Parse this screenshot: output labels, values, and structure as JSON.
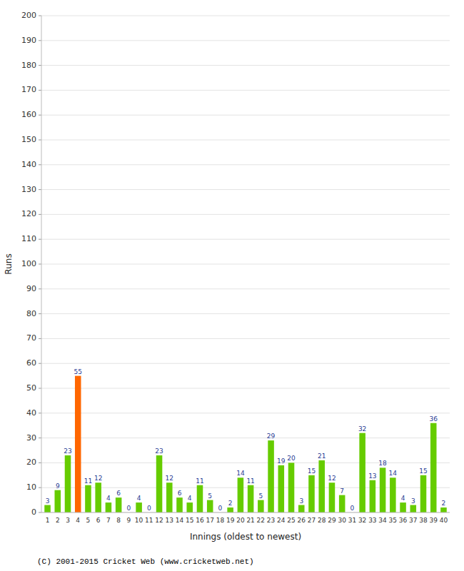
{
  "chart_data": {
    "type": "bar",
    "xlabel": "Innings (oldest to newest)",
    "ylabel": "Runs",
    "categories": [
      1,
      2,
      3,
      4,
      5,
      6,
      7,
      8,
      9,
      10,
      11,
      12,
      13,
      14,
      15,
      16,
      17,
      18,
      19,
      20,
      21,
      22,
      23,
      24,
      25,
      26,
      27,
      28,
      29,
      30,
      31,
      32,
      33,
      34,
      35,
      36,
      37,
      38,
      39,
      40
    ],
    "values": [
      3,
      9,
      23,
      55,
      11,
      12,
      4,
      6,
      0,
      4,
      0,
      23,
      12,
      6,
      4,
      11,
      5,
      0,
      2,
      14,
      11,
      5,
      29,
      19,
      20,
      3,
      15,
      21,
      12,
      7,
      0,
      32,
      13,
      18,
      14,
      4,
      3,
      15,
      36,
      2
    ],
    "colors": [
      "#66cc00",
      "#66cc00",
      "#66cc00",
      "#ff6600",
      "#66cc00",
      "#66cc00",
      "#66cc00",
      "#66cc00",
      "#66cc00",
      "#66cc00",
      "#66cc00",
      "#66cc00",
      "#66cc00",
      "#66cc00",
      "#66cc00",
      "#66cc00",
      "#66cc00",
      "#66cc00",
      "#66cc00",
      "#66cc00",
      "#66cc00",
      "#66cc00",
      "#66cc00",
      "#66cc00",
      "#66cc00",
      "#66cc00",
      "#66cc00",
      "#66cc00",
      "#66cc00",
      "#66cc00",
      "#66cc00",
      "#66cc00",
      "#66cc00",
      "#66cc00",
      "#66cc00",
      "#66cc00",
      "#66cc00",
      "#66cc00",
      "#66cc00",
      "#66cc00"
    ],
    "ylim": [
      0,
      200
    ],
    "yticks": [
      0,
      10,
      20,
      30,
      40,
      50,
      60,
      70,
      80,
      90,
      100,
      110,
      120,
      130,
      140,
      150,
      160,
      170,
      180,
      190,
      200
    ],
    "grid": true,
    "data_labels": true,
    "annotations": [
      "(C) 2001-2015 Cricket Web (www.cricketweb.net)"
    ]
  }
}
